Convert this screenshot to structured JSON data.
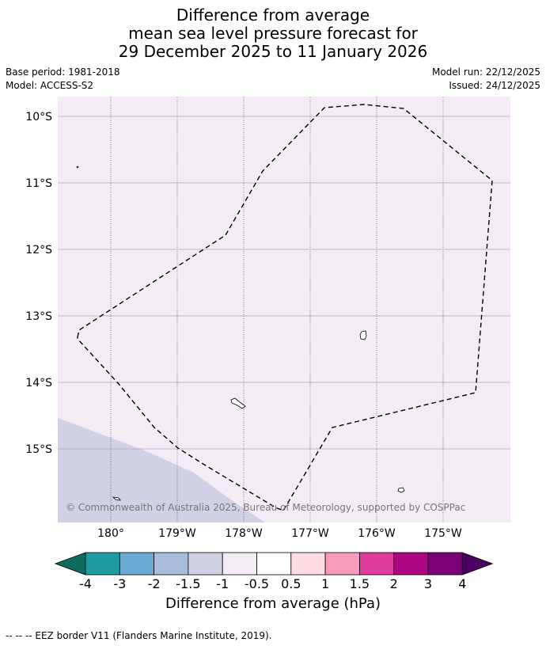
{
  "title": {
    "line1": "Difference from average",
    "line2": "mean sea level pressure forecast for",
    "line3": "29 December 2025 to 11 January 2026"
  },
  "meta": {
    "base_period": "Base period: 1981-2018",
    "model": "Model: ACCESS-S2",
    "model_run": "Model run: 22/12/2025",
    "issued": "Issued: 24/12/2025"
  },
  "map": {
    "lat_labels": [
      "10°S",
      "11°S",
      "12°S",
      "13°S",
      "14°S",
      "15°S"
    ],
    "lon_labels": [
      "180°",
      "179°W",
      "178°W",
      "177°W",
      "176°W",
      "175°W"
    ],
    "copyright": "© Commonwealth of Australia 2025, Bureau of Meteorology, supported by COSPPac",
    "background_color": "#f3ecf5",
    "lower_anomaly_color": "#d0d1e5"
  },
  "colorbar": {
    "tick_labels": [
      "-4",
      "-3",
      "-2",
      "-1.5",
      "-1",
      "-0.5",
      "0.5",
      "1",
      "1.5",
      "2",
      "3",
      "4"
    ],
    "colors": [
      "#0f6b5d",
      "#1e9aa3",
      "#6aaad4",
      "#a9bcd9",
      "#d0d1e5",
      "#f3ecf5",
      "#ffffff",
      "#fddde3",
      "#f79cbd",
      "#df3c9e",
      "#ac0683",
      "#7a0177",
      "#4b0063"
    ],
    "label": "Difference from average (hPa)"
  },
  "footer": "--  --  -- EEZ border V11 (Flanders Marine Institute, 2019)."
}
